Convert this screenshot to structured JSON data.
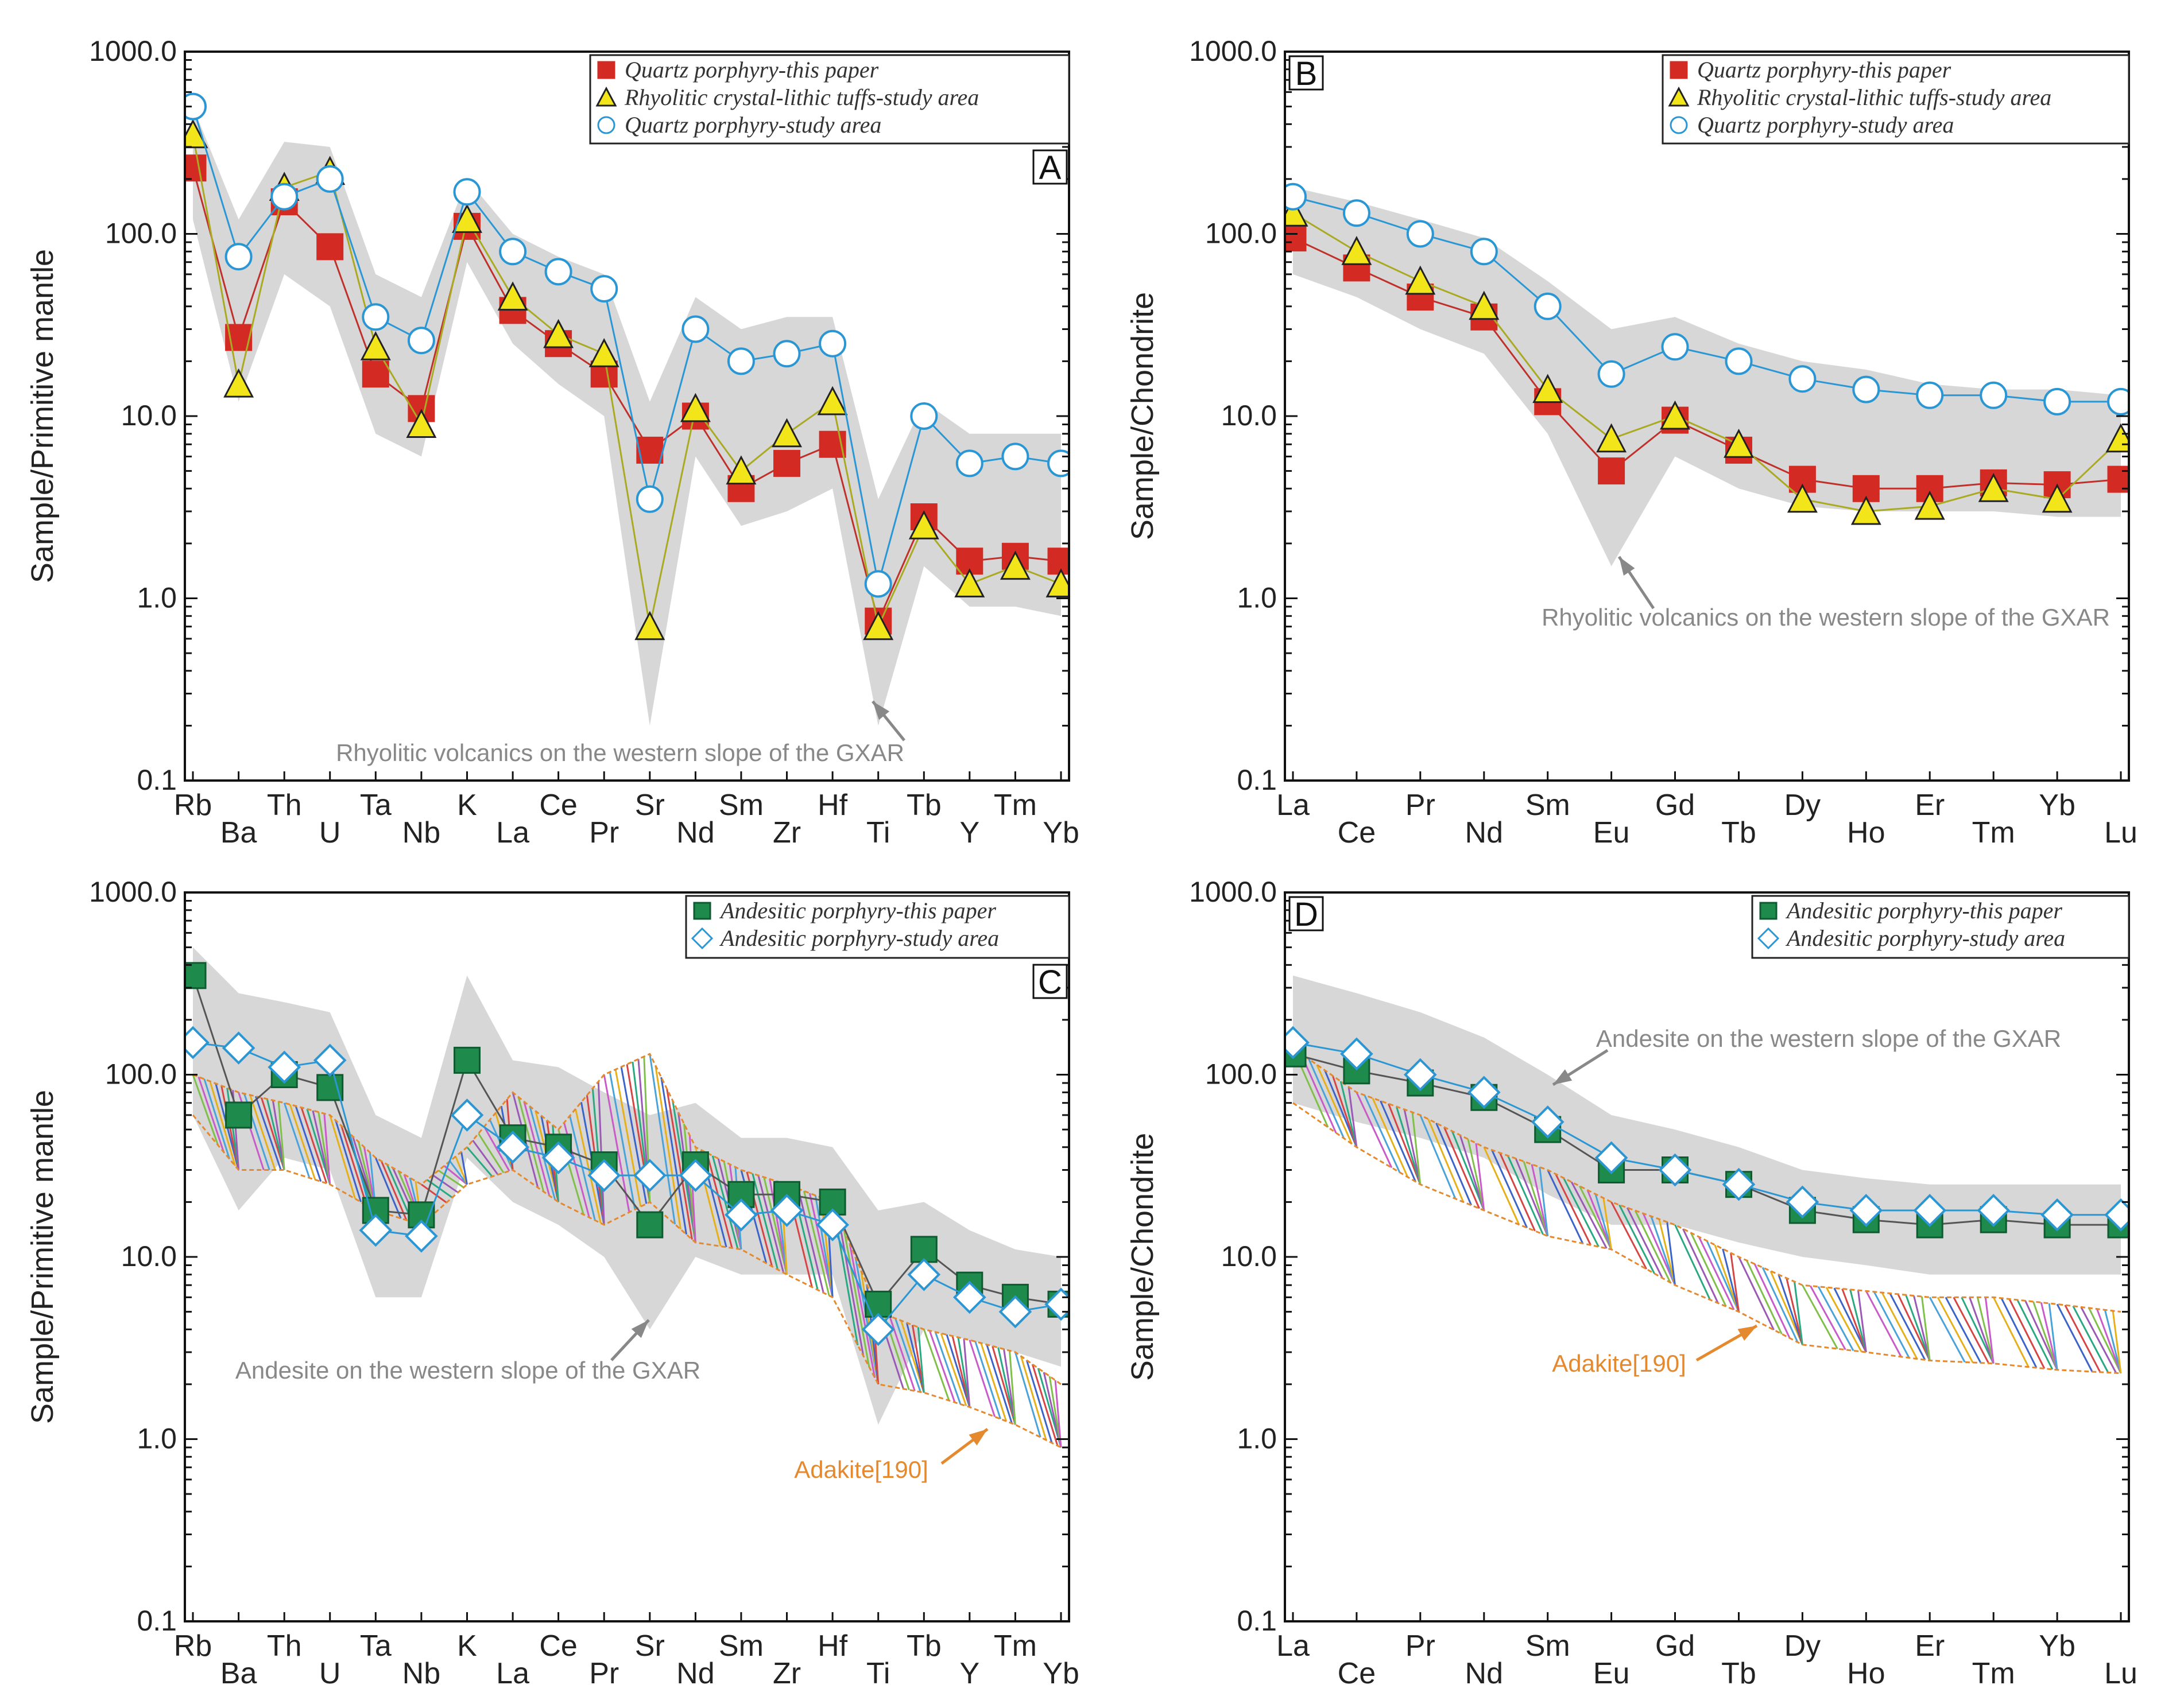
{
  "colors": {
    "quartz_this": "#d32b23",
    "tuff": "#f2e61b",
    "quartz_study": "#2a97d4",
    "andesite_this": "#1e8a4b",
    "andesite_study": "#2a97d4",
    "gxar_field": "#d3d3d3",
    "adakite": "#e5892e",
    "annotation": "#888888"
  },
  "chart_data": [
    {
      "panel": "A",
      "type": "line",
      "scale": "log",
      "ylabel": "Sample/Primitive mantle",
      "ylim": [
        0.1,
        1000
      ],
      "yticks": [
        "1000.0",
        "100.0",
        "10.0",
        "1.0",
        "0.1"
      ],
      "elements": [
        "Rb",
        "Ba",
        "Th",
        "U",
        "Ta",
        "Nb",
        "K",
        "La",
        "Ce",
        "Pr",
        "Sr",
        "Nd",
        "Sm",
        "Zr",
        "Hf",
        "Ti",
        "Tb",
        "Y",
        "Tm",
        "Yb"
      ],
      "legend": [
        "Quartz porphyry-this paper",
        "Rhyolitic crystal-lithic tuffs-study area",
        "Quartz porphyry-study area"
      ],
      "annotation": "Rhyolitic volcanics on the western slope of the GXAR",
      "series": [
        {
          "name": "Quartz porphyry-this paper",
          "values": [
            230,
            27,
            150,
            85,
            17,
            11,
            110,
            38,
            25,
            17,
            6.5,
            10,
            4,
            5.5,
            7,
            0.75,
            2.8,
            1.6,
            1.7,
            1.6
          ]
        },
        {
          "name": "Rhyolitic crystal-lithic tuffs-study area",
          "values": [
            350,
            15,
            180,
            220,
            24,
            9,
            120,
            45,
            28,
            22,
            0.7,
            11,
            5,
            8,
            12,
            0.7,
            2.5,
            1.2,
            1.5,
            1.2
          ]
        },
        {
          "name": "Quartz porphyry-study area",
          "values": [
            500,
            75,
            160,
            200,
            35,
            26,
            170,
            80,
            62,
            50,
            3.5,
            30,
            20,
            22,
            25,
            1.2,
            10,
            5.5,
            6,
            5.5
          ]
        }
      ],
      "field": {
        "name": "Rhyolitic volcanics on the western slope of the GXAR",
        "upper": [
          500,
          120,
          320,
          300,
          60,
          45,
          200,
          100,
          75,
          60,
          12,
          45,
          30,
          35,
          35,
          3.5,
          12,
          8,
          8,
          8
        ],
        "lower": [
          120,
          12,
          60,
          40,
          8,
          6,
          70,
          25,
          15,
          10,
          0.2,
          6,
          2.5,
          3,
          4,
          0.2,
          1.5,
          0.9,
          0.9,
          0.8
        ]
      }
    },
    {
      "panel": "B",
      "type": "line",
      "scale": "log",
      "ylabel": "Sample/Chondrite",
      "ylim": [
        0.1,
        1000
      ],
      "yticks": [
        "1000.0",
        "100.0",
        "10.0",
        "1.0",
        "0.1"
      ],
      "elements": [
        "La",
        "Ce",
        "Pr",
        "Nd",
        "Sm",
        "Eu",
        "Gd",
        "Tb",
        "Dy",
        "Ho",
        "Er",
        "Tm",
        "Yb",
        "Lu"
      ],
      "legend": [
        "Quartz porphyry-this paper",
        "Rhyolitic crystal-lithic tuffs-study area",
        "Quartz porphyry-study area"
      ],
      "annotation": "Rhyolitic volcanics on the western slope of the GXAR",
      "series": [
        {
          "name": "Quartz porphyry-this paper",
          "values": [
            95,
            65,
            45,
            35,
            12,
            5,
            9.5,
            6.5,
            4.5,
            4,
            4,
            4.3,
            4.2,
            4.5
          ]
        },
        {
          "name": "Rhyolitic crystal-lithic tuffs-study area",
          "values": [
            130,
            80,
            55,
            40,
            14,
            7.5,
            10,
            7,
            3.5,
            3,
            3.2,
            4,
            3.5,
            7.5
          ]
        },
        {
          "name": "Quartz porphyry-study area",
          "values": [
            160,
            130,
            100,
            80,
            40,
            17,
            24,
            20,
            16,
            14,
            13,
            13,
            12,
            12
          ]
        }
      ],
      "field": {
        "name": "Rhyolitic volcanics on the western slope of the GXAR",
        "upper": [
          180,
          150,
          120,
          95,
          55,
          30,
          35,
          25,
          20,
          18,
          15,
          14,
          14,
          13
        ],
        "lower": [
          60,
          45,
          30,
          22,
          8,
          1.5,
          6,
          4,
          3.2,
          3,
          3,
          3,
          2.8,
          2.8
        ]
      }
    },
    {
      "panel": "C",
      "type": "line",
      "scale": "log",
      "ylabel": "Sample/Primitive mantle",
      "ylim": [
        0.1,
        1000
      ],
      "yticks": [
        "1000.0",
        "100.0",
        "10.0",
        "1.0",
        "0.1"
      ],
      "elements": [
        "Rb",
        "Ba",
        "Th",
        "U",
        "Ta",
        "Nb",
        "K",
        "La",
        "Ce",
        "Pr",
        "Sr",
        "Nd",
        "Sm",
        "Zr",
        "Hf",
        "Ti",
        "Tb",
        "Y",
        "Tm",
        "Yb"
      ],
      "legend": [
        "Andesitic porphyry-this paper",
        "Andesitic porphyry-study area"
      ],
      "annotations": [
        "Andesite on the western slope of the GXAR",
        "Adakite[190]"
      ],
      "series": [
        {
          "name": "Andesitic porphyry-this paper",
          "values": [
            350,
            60,
            100,
            85,
            18,
            17,
            120,
            45,
            40,
            32,
            15,
            32,
            22,
            22,
            20,
            5.5,
            11,
            7,
            6,
            5.5
          ]
        },
        {
          "name": "Andesitic porphyry-study area",
          "values": [
            150,
            140,
            110,
            120,
            14,
            13,
            60,
            40,
            35,
            28,
            28,
            28,
            17,
            18,
            15,
            4,
            8,
            6,
            5,
            5.5
          ]
        }
      ],
      "field": {
        "name": "Andesite on the western slope of the GXAR",
        "upper": [
          500,
          280,
          250,
          220,
          60,
          45,
          350,
          120,
          110,
          80,
          60,
          70,
          45,
          45,
          40,
          18,
          20,
          14,
          11,
          10
        ],
        "lower": [
          60,
          18,
          35,
          30,
          6,
          6,
          35,
          20,
          15,
          10,
          4,
          10,
          8,
          8,
          8,
          1.2,
          4,
          3.5,
          3,
          2.5
        ]
      },
      "adakite": {
        "name": "Adakite[190]",
        "upper": [
          100,
          80,
          70,
          60,
          35,
          25,
          40,
          80,
          50,
          100,
          130,
          40,
          30,
          25,
          20,
          5,
          4,
          3.5,
          3,
          2
        ],
        "lower": [
          60,
          30,
          30,
          25,
          18,
          15,
          25,
          30,
          20,
          15,
          20,
          12,
          11,
          8,
          6,
          2,
          1.8,
          1.5,
          1.2,
          0.9
        ]
      }
    },
    {
      "panel": "D",
      "type": "line",
      "scale": "log",
      "ylabel": "Sample/Chondrite",
      "ylim": [
        0.1,
        1000
      ],
      "yticks": [
        "1000.0",
        "100.0",
        "10.0",
        "1.0",
        "0.1"
      ],
      "elements": [
        "La",
        "Ce",
        "Pr",
        "Nd",
        "Sm",
        "Eu",
        "Gd",
        "Tb",
        "Dy",
        "Ho",
        "Er",
        "Tm",
        "Yb",
        "Lu"
      ],
      "legend": [
        "Andesitic porphyry-this paper",
        "Andesitic porphyry-study area"
      ],
      "annotations": [
        "Andesite on the western slope of the GXAR",
        "Adakite[190]"
      ],
      "series": [
        {
          "name": "Andesitic porphyry-this paper",
          "values": [
            130,
            105,
            90,
            75,
            50,
            30,
            30,
            25,
            18,
            16,
            15,
            16,
            15,
            15
          ]
        },
        {
          "name": "Andesitic porphyry-study area",
          "values": [
            150,
            130,
            100,
            80,
            55,
            35,
            30,
            25,
            20,
            18,
            18,
            18,
            17,
            17
          ]
        }
      ],
      "field": {
        "name": "Andesite on the western slope of the GXAR",
        "upper": [
          350,
          280,
          220,
          160,
          100,
          60,
          50,
          40,
          30,
          27,
          25,
          25,
          25,
          25
        ],
        "lower": [
          70,
          55,
          45,
          35,
          22,
          15,
          15,
          12,
          10,
          9,
          8,
          8,
          8,
          8
        ]
      },
      "adakite": {
        "name": "Adakite[190]",
        "upper": [
          140,
          80,
          60,
          40,
          30,
          20,
          15,
          10,
          7,
          6.5,
          6,
          6,
          5.5,
          5
        ],
        "lower": [
          70,
          40,
          25,
          18,
          13,
          11,
          7,
          5,
          3.3,
          3,
          2.7,
          2.6,
          2.4,
          2.3
        ]
      }
    }
  ]
}
